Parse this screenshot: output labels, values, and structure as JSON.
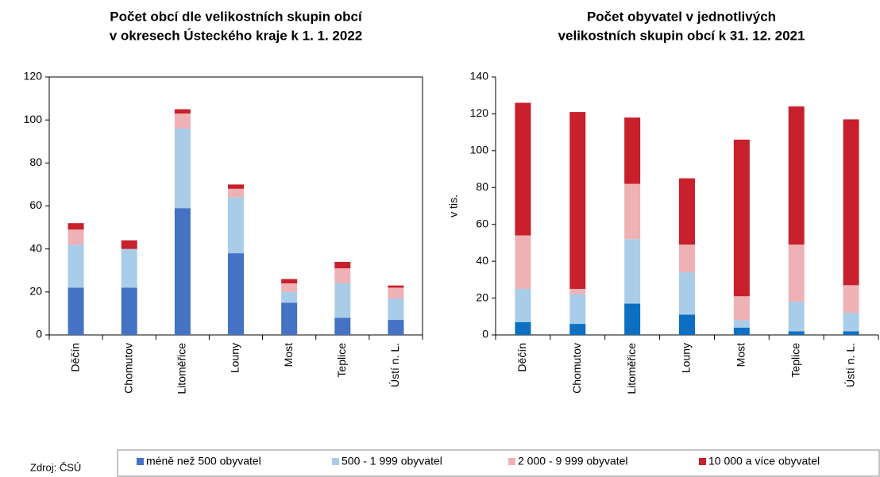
{
  "chart_data": [
    {
      "type": "bar",
      "stacked": true,
      "title": [
        "Počet obcí dle velikostních skupin obcí",
        "v okresech Ústeckého kraje k 1. 1. 2022"
      ],
      "categories": [
        "Děčín",
        "Chomutov",
        "Litoměřice",
        "Louny",
        "Most",
        "Teplice",
        "Ústí n. L."
      ],
      "series": [
        {
          "color": "#4472c4",
          "values": [
            22,
            22,
            59,
            38,
            15,
            8,
            7
          ]
        },
        {
          "color": "#a9cde9",
          "values": [
            20,
            18,
            37,
            26,
            5,
            16,
            10
          ]
        },
        {
          "color": "#eeb1b6",
          "values": [
            7,
            0,
            7,
            4,
            4,
            7,
            5
          ]
        },
        {
          "color": "#c8202c",
          "values": [
            3,
            4,
            2,
            2,
            2,
            3,
            1
          ]
        }
      ],
      "ylim": [
        0,
        120
      ],
      "yticks": [
        0,
        20,
        40,
        60,
        80,
        100,
        120
      ],
      "grid": false,
      "frame": true
    },
    {
      "type": "bar",
      "stacked": true,
      "title": [
        "Počet obyvatel v jednotlivých",
        "velikostních skupin obcí k 31. 12. 2021"
      ],
      "ylabel": "v tis.",
      "categories": [
        "Děčín",
        "Chomutov",
        "Litoměřice",
        "Louny",
        "Most",
        "Teplice",
        "Ústí n. L."
      ],
      "series": [
        {
          "color": "#0c6fc1",
          "values": [
            7,
            6,
            17,
            11,
            4,
            2,
            2
          ]
        },
        {
          "color": "#a9cde9",
          "values": [
            18,
            16,
            35,
            23,
            4,
            16,
            10
          ]
        },
        {
          "color": "#eeb1b6",
          "values": [
            29,
            3,
            30,
            15,
            13,
            31,
            15
          ]
        },
        {
          "color": "#c8202c",
          "values": [
            72,
            96,
            36,
            36,
            85,
            75,
            90
          ]
        }
      ],
      "ylim": [
        0,
        140
      ],
      "yticks": [
        0,
        20,
        40,
        60,
        80,
        100,
        120,
        140
      ],
      "grid": false,
      "frame": false
    }
  ],
  "legend": [
    {
      "name": "méně než 500 obyvatel",
      "color": "#4472c4"
    },
    {
      "name": "500 - 1 999 obyvatel",
      "color": "#a9cde9"
    },
    {
      "name": "2 000 - 9 999 obyvatel",
      "color": "#eeb1b6"
    },
    {
      "name": "10 000 a více obyvatel",
      "color": "#c8202c"
    }
  ],
  "source": "Zdroj: ČSÚ"
}
